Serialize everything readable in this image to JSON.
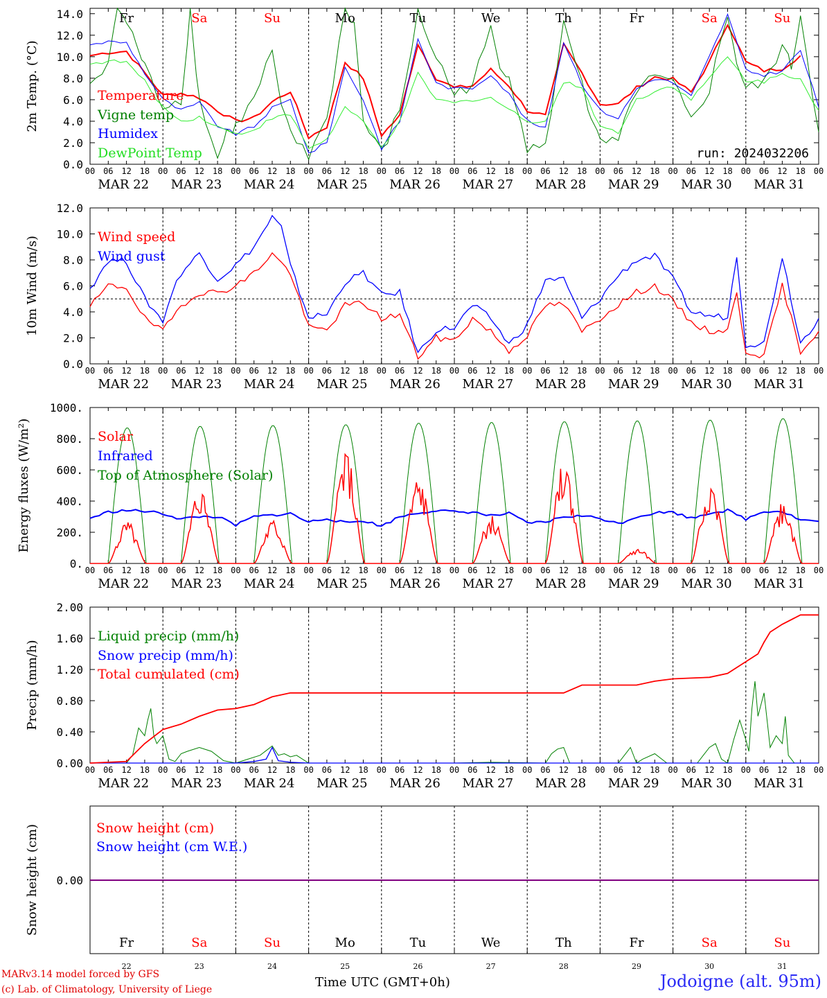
{
  "footer": {
    "credit_line1": "MARv3.14 model forced by GFS",
    "credit_line2": "(c) Lab. of Climatology, University of Liege",
    "xlabel": "Time UTC (GMT+0h)",
    "location": "Jodoigne (alt. 95m)"
  },
  "colors": {
    "red": "#ff0000",
    "green": "#008000",
    "blue": "#0000ff",
    "lime": "#33ee33",
    "purple": "#800080"
  },
  "days": {
    "names": [
      "Fr",
      "Sa",
      "Su",
      "Mo",
      "Tu",
      "We",
      "Th",
      "Fr",
      "Sa",
      "Su"
    ],
    "weekend": [
      false,
      true,
      true,
      false,
      false,
      false,
      false,
      false,
      true,
      true
    ],
    "dates": [
      "MAR 22",
      "MAR 23",
      "MAR 24",
      "MAR 25",
      "MAR 26",
      "MAR 27",
      "MAR 28",
      "MAR 29",
      "MAR 30",
      "MAR 31"
    ],
    "day_numbers": [
      "22",
      "23",
      "24",
      "25",
      "26",
      "27",
      "28",
      "29",
      "30",
      "31"
    ],
    "hour_ticks": [
      "00",
      "06",
      "12",
      "18"
    ],
    "final_tick": "00"
  },
  "chart_data": [
    {
      "type": "line",
      "ylabel": "2m Temp. (°C)",
      "ylim": [
        0,
        14.5
      ],
      "yticks": [
        "0.0",
        "2.0",
        "4.0",
        "6.0",
        "8.0",
        "10.0",
        "12.0",
        "14.0"
      ],
      "annotation": "run: 2024032206",
      "x_unit": "hours from MAR 22 00 UTC",
      "series": [
        {
          "name": "Temperature",
          "color": "red",
          "x": [
            0,
            6,
            12,
            18,
            24,
            30,
            36,
            42,
            48,
            54,
            60,
            66,
            72,
            78,
            84,
            90,
            96,
            102,
            108,
            114,
            120,
            126,
            132,
            138,
            144,
            150,
            156,
            162,
            168,
            174,
            180,
            186,
            192,
            198,
            204,
            210,
            216,
            222,
            228,
            234
          ],
          "y": [
            10.1,
            10.4,
            10.5,
            8.5,
            6.4,
            6.6,
            6.2,
            5.0,
            4.0,
            4.3,
            5.8,
            6.8,
            2.5,
            3.5,
            9.5,
            8.0,
            2.7,
            4.5,
            11.2,
            8.0,
            7.1,
            7.3,
            8.8,
            7.3,
            5.0,
            4.5,
            11.1,
            8.5,
            5.6,
            5.6,
            7.1,
            8.1,
            7.9,
            6.7,
            9.5,
            13.1,
            9.5,
            8.7,
            8.9,
            10.1
          ]
        },
        {
          "name": "Vigne temp",
          "color": "green",
          "x": [
            0,
            6,
            9,
            12,
            15,
            18,
            24,
            30,
            33,
            36,
            42,
            45,
            48,
            54,
            60,
            63,
            66,
            72,
            75,
            78,
            84,
            87,
            90,
            96,
            102,
            108,
            114,
            120,
            126,
            132,
            135,
            138,
            144,
            150,
            156,
            162,
            165,
            168,
            174,
            180,
            186,
            192,
            198,
            204,
            210,
            213,
            216,
            222,
            228,
            231,
            234,
            240
          ],
          "y": [
            7.5,
            9.0,
            15.0,
            13.0,
            11.5,
            9.0,
            5.5,
            6.0,
            14.5,
            6.0,
            0.5,
            3.0,
            3.5,
            6.0,
            10.5,
            5.0,
            3.0,
            0.5,
            3.0,
            4.0,
            15.0,
            13.0,
            4.0,
            1.0,
            5.0,
            14.0,
            10.0,
            6.5,
            7.5,
            12.5,
            9.0,
            8.5,
            1.5,
            1.5,
            13.0,
            8.0,
            4.0,
            2.0,
            2.0,
            7.0,
            8.0,
            7.5,
            4.0,
            7.0,
            14.0,
            9.5,
            7.0,
            7.5,
            11.0,
            9.0,
            14.0,
            3.0
          ]
        },
        {
          "name": "Humidex",
          "color": "blue",
          "x": [
            0,
            6,
            12,
            18,
            24,
            30,
            36,
            42,
            48,
            54,
            60,
            66,
            72,
            78,
            84,
            90,
            96,
            102,
            108,
            114,
            120,
            126,
            132,
            138,
            144,
            150,
            156,
            162,
            168,
            174,
            180,
            186,
            192,
            198,
            204,
            210,
            216,
            222,
            228,
            234,
            240
          ],
          "y": [
            11.1,
            11.4,
            11.3,
            8.5,
            6.0,
            5.0,
            5.7,
            3.6,
            2.8,
            3.5,
            5.2,
            6.0,
            1.0,
            2.0,
            9.0,
            6.0,
            1.5,
            4.0,
            11.7,
            7.5,
            7.0,
            7.1,
            8.4,
            6.5,
            4.0,
            3.3,
            11.4,
            7.5,
            5.0,
            4.3,
            7.0,
            8.0,
            7.6,
            6.3,
            10.0,
            13.9,
            8.7,
            8.3,
            8.7,
            10.6,
            5.3
          ]
        },
        {
          "name": "DewPoint Temp",
          "color": "lime",
          "x": [
            0,
            6,
            12,
            18,
            24,
            30,
            36,
            42,
            48,
            54,
            60,
            66,
            72,
            78,
            84,
            90,
            96,
            102,
            108,
            114,
            120,
            126,
            132,
            138,
            144,
            150,
            156,
            162,
            168,
            174,
            180,
            186,
            192,
            198,
            204,
            210,
            216,
            222,
            228,
            234,
            240
          ],
          "y": [
            9.3,
            9.6,
            9.5,
            7.7,
            5.3,
            4.0,
            4.4,
            3.5,
            2.8,
            3.2,
            4.3,
            4.6,
            1.5,
            2.3,
            5.3,
            3.9,
            1.6,
            3.9,
            8.4,
            6.0,
            5.7,
            6.0,
            6.2,
            5.1,
            4.0,
            4.0,
            7.6,
            7.2,
            3.5,
            3.0,
            6.0,
            6.8,
            7.3,
            6.0,
            8.0,
            10.0,
            7.8,
            7.7,
            8.4,
            8.0,
            5.0
          ]
        }
      ]
    },
    {
      "type": "line",
      "ylabel": "10m Wind (m/s)",
      "ylim": [
        0,
        12
      ],
      "yticks": [
        "0.0",
        "2.0",
        "4.0",
        "6.0",
        "8.0",
        "10.0",
        "12.0"
      ],
      "reference_line": 5.0,
      "x_unit": "hours from MAR 22 00 UTC",
      "series": [
        {
          "name": "Wind speed",
          "color": "red",
          "x": [
            0,
            6,
            12,
            18,
            24,
            27,
            30,
            36,
            42,
            48,
            54,
            60,
            66,
            72,
            78,
            84,
            90,
            96,
            102,
            108,
            114,
            120,
            126,
            132,
            138,
            144,
            150,
            156,
            162,
            168,
            174,
            180,
            186,
            192,
            198,
            204,
            210,
            213,
            216,
            222,
            228,
            234,
            240
          ],
          "y": [
            4.4,
            6.0,
            5.9,
            3.5,
            2.5,
            3.5,
            4.5,
            5.5,
            5.5,
            6.0,
            7.0,
            8.5,
            7.0,
            2.8,
            2.6,
            4.5,
            4.7,
            3.5,
            3.8,
            0.5,
            2.0,
            1.8,
            3.5,
            2.5,
            1.0,
            2.2,
            4.5,
            4.6,
            2.5,
            3.5,
            4.6,
            5.5,
            6.0,
            4.8,
            3.2,
            2.5,
            2.6,
            5.4,
            1.0,
            0.6,
            6.0,
            1.0,
            2.5
          ]
        },
        {
          "name": "Wind gust",
          "color": "blue",
          "x": [
            0,
            6,
            12,
            18,
            24,
            27,
            30,
            36,
            42,
            48,
            54,
            60,
            63,
            66,
            72,
            78,
            84,
            90,
            96,
            102,
            108,
            114,
            120,
            126,
            132,
            138,
            144,
            150,
            156,
            162,
            168,
            174,
            180,
            186,
            192,
            198,
            204,
            210,
            213,
            216,
            222,
            228,
            234,
            240
          ],
          "y": [
            5.8,
            8.0,
            7.9,
            5.0,
            3.3,
            5.5,
            7.0,
            8.5,
            6.5,
            7.6,
            9.0,
            11.3,
            10.5,
            7.5,
            3.6,
            3.8,
            6.3,
            7.0,
            5.3,
            5.5,
            0.8,
            2.6,
            2.8,
            4.5,
            3.5,
            1.5,
            3.0,
            6.5,
            6.5,
            3.5,
            5.0,
            6.8,
            8.0,
            8.3,
            6.5,
            4.0,
            3.7,
            3.6,
            8.4,
            1.5,
            1.6,
            8.3,
            1.6,
            3.5
          ]
        }
      ]
    },
    {
      "type": "line",
      "ylabel": "Energy fluxes (W/m²)",
      "ylim": [
        0,
        1000
      ],
      "yticks": [
        "0.",
        "200.",
        "400.",
        "600.",
        "800.",
        "1000."
      ],
      "x_unit": "hours from MAR 22 00 UTC",
      "solar_peaks": [
        250,
        460,
        260,
        675,
        520,
        285,
        605,
        90,
        510,
        385
      ],
      "toa_peaks": [
        870,
        880,
        885,
        890,
        900,
        905,
        910,
        915,
        920,
        930
      ],
      "series": [
        {
          "name": "Solar",
          "color": "red"
        },
        {
          "name": "Infrared",
          "color": "blue",
          "x": [
            0,
            6,
            12,
            18,
            24,
            30,
            36,
            42,
            48,
            54,
            60,
            66,
            72,
            78,
            84,
            90,
            96,
            102,
            108,
            114,
            120,
            126,
            132,
            138,
            144,
            150,
            156,
            162,
            168,
            174,
            180,
            186,
            192,
            198,
            204,
            210,
            216,
            222,
            228,
            234,
            240
          ],
          "y": [
            290,
            330,
            340,
            335,
            320,
            285,
            300,
            300,
            245,
            300,
            310,
            320,
            265,
            290,
            260,
            275,
            240,
            300,
            325,
            340,
            330,
            330,
            305,
            320,
            260,
            265,
            300,
            305,
            290,
            255,
            300,
            325,
            330,
            290,
            325,
            340,
            285,
            335,
            335,
            280,
            270
          ]
        },
        {
          "name": "Top of Atmosphere (Solar)",
          "color": "green"
        }
      ]
    },
    {
      "type": "line",
      "ylabel": "Precip (mm/h)",
      "ylim": [
        0,
        2.0
      ],
      "yticks": [
        "0.00",
        "0.40",
        "0.80",
        "1.20",
        "1.60",
        "2.00"
      ],
      "x_unit": "hours from MAR 22 00 UTC",
      "series": [
        {
          "name": "Liquid precip (mm/h)",
          "color": "green",
          "x": [
            0,
            12,
            14,
            16,
            18,
            19,
            20,
            21,
            22,
            24,
            26,
            28,
            30,
            32,
            36,
            40,
            44,
            48,
            52,
            56,
            60,
            62,
            64,
            66,
            68,
            72,
            96,
            120,
            132,
            150,
            152,
            154,
            156,
            158,
            174,
            176,
            178,
            180,
            182,
            186,
            190,
            200,
            202,
            204,
            206,
            208,
            210,
            212,
            214,
            216,
            217,
            218,
            219,
            220,
            222,
            224,
            226,
            228,
            229,
            230,
            232,
            234,
            240
          ],
          "y": [
            0,
            0,
            0.1,
            0.45,
            0.35,
            0.55,
            0.7,
            0.35,
            0.25,
            0.35,
            0.05,
            0.02,
            0.12,
            0.15,
            0.2,
            0.15,
            0.03,
            0,
            0.05,
            0.1,
            0.22,
            0.1,
            0.12,
            0.08,
            0.1,
            0,
            0,
            0,
            0.01,
            0,
            0.12,
            0.18,
            0.2,
            0,
            0,
            0.1,
            0.2,
            0,
            0.05,
            0.12,
            0,
            0,
            0.1,
            0.2,
            0.25,
            0.05,
            0,
            0.3,
            0.55,
            0.3,
            0.15,
            0.7,
            1.05,
            0.6,
            0.9,
            0.2,
            0.35,
            0.25,
            0.6,
            0.1,
            0,
            0,
            0
          ]
        },
        {
          "name": "Snow precip (mm/h)",
          "color": "blue",
          "x": [
            0,
            48,
            54,
            58,
            60,
            62,
            66,
            72,
            240
          ],
          "y": [
            0,
            0,
            0.02,
            0.05,
            0.2,
            0.03,
            0.01,
            0,
            0
          ]
        },
        {
          "name": "Total cumulated (cm)",
          "color": "red",
          "x": [
            0,
            12,
            18,
            24,
            30,
            36,
            42,
            48,
            54,
            60,
            66,
            72,
            96,
            120,
            144,
            156,
            162,
            168,
            180,
            186,
            192,
            198,
            204,
            210,
            216,
            220,
            222,
            224,
            228,
            234,
            240
          ],
          "y": [
            0,
            0.02,
            0.25,
            0.43,
            0.5,
            0.6,
            0.68,
            0.7,
            0.75,
            0.85,
            0.9,
            0.9,
            0.9,
            0.9,
            0.9,
            0.9,
            1.0,
            1.0,
            1.0,
            1.05,
            1.08,
            1.09,
            1.1,
            1.15,
            1.3,
            1.4,
            1.55,
            1.68,
            1.78,
            1.9,
            1.9
          ]
        }
      ]
    },
    {
      "type": "line",
      "ylabel": "Snow height (cm)",
      "ytick": "0.00",
      "x_unit": "hours from MAR 22 00 UTC",
      "series": [
        {
          "name": "Snow height (cm)",
          "color": "red",
          "x": [
            0,
            240
          ],
          "y": [
            0,
            0
          ]
        },
        {
          "name": "Snow height (cm W.E.)",
          "color": "blue",
          "x": [
            0,
            240
          ],
          "y": [
            0,
            0
          ]
        }
      ]
    }
  ]
}
